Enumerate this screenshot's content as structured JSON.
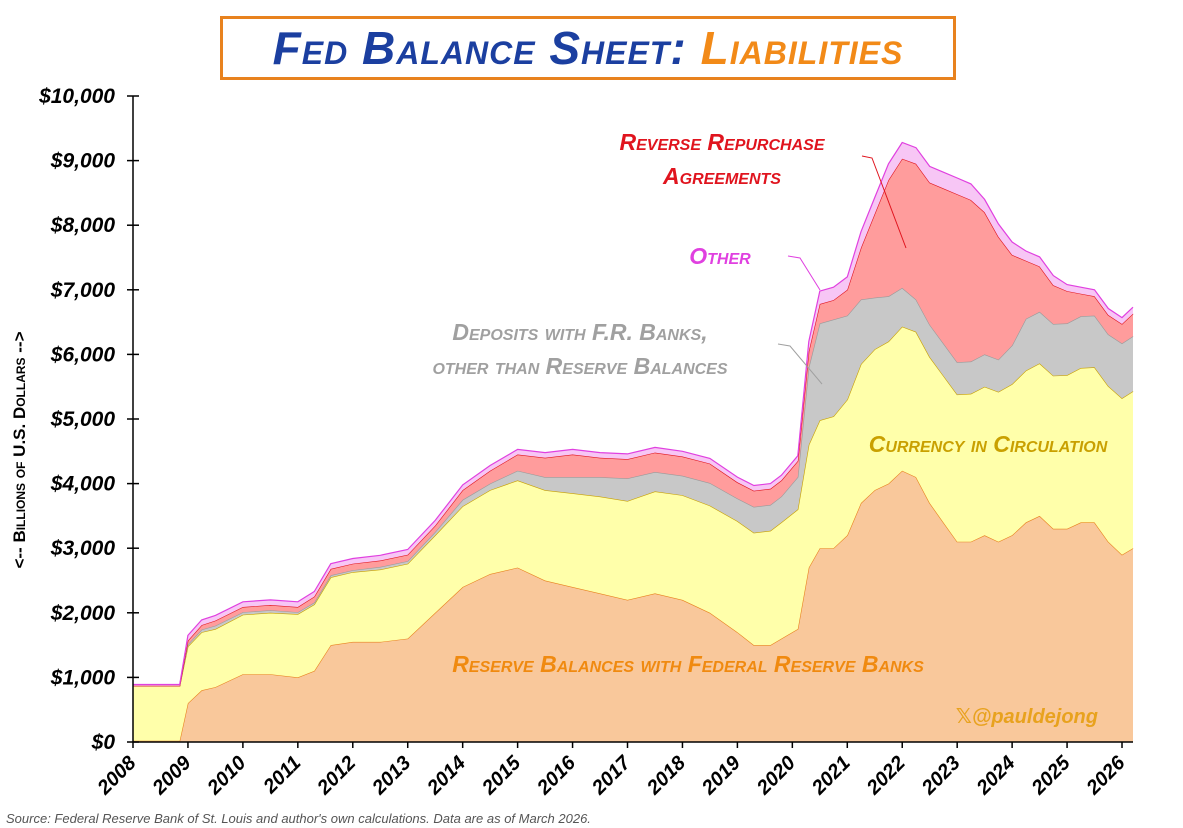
{
  "title": {
    "main": "Fed Balance Sheet:",
    "accent": "Liabilities"
  },
  "source": "Source: Federal Reserve Bank of St. Louis and author's own calculations. Data are as of March 2026.",
  "watermark": "𝕏@pauldejong",
  "chart_data": {
    "type": "area",
    "stacked": true,
    "title": "Fed Balance Sheet: Liabilities",
    "ylabel": "<-- Billions of U.S. Dollars -->",
    "xlabel": "",
    "xlim": [
      2008,
      2026.2
    ],
    "ylim": [
      0,
      10000
    ],
    "y_ticks": [
      0,
      1000,
      2000,
      3000,
      4000,
      5000,
      6000,
      7000,
      8000,
      9000,
      10000
    ],
    "y_tick_labels": [
      "$0",
      "$1,000",
      "$2,000",
      "$3,000",
      "$4,000",
      "$5,000",
      "$6,000",
      "$7,000",
      "$8,000",
      "$9,000",
      "$10,000"
    ],
    "x_tick_labels": [
      "2008",
      "2009",
      "2010",
      "2011",
      "2012",
      "2013",
      "2014",
      "2015",
      "2016",
      "2017",
      "2018",
      "2019",
      "2020",
      "2021",
      "2022",
      "2023",
      "2024",
      "2025",
      "2026"
    ],
    "x": [
      2008.0,
      2008.75,
      2008.85,
      2009.0,
      2009.25,
      2009.5,
      2010.0,
      2010.5,
      2011.0,
      2011.3,
      2011.6,
      2012.0,
      2012.5,
      2013.0,
      2013.5,
      2014.0,
      2014.5,
      2015.0,
      2015.5,
      2016.0,
      2016.5,
      2017.0,
      2017.5,
      2018.0,
      2018.5,
      2019.0,
      2019.3,
      2019.6,
      2019.8,
      2020.1,
      2020.3,
      2020.5,
      2020.75,
      2021.0,
      2021.25,
      2021.5,
      2021.75,
      2022.0,
      2022.25,
      2022.5,
      2022.75,
      2023.0,
      2023.25,
      2023.5,
      2023.75,
      2024.0,
      2024.25,
      2024.5,
      2024.75,
      2025.0,
      2025.25,
      2025.5,
      2025.75,
      2026.0,
      2026.2
    ],
    "series": [
      {
        "name": "Reserve Balances with Federal Reserve Banks",
        "color": "#f9c89b",
        "values": [
          20,
          20,
          20,
          600,
          800,
          850,
          1050,
          1050,
          1000,
          1100,
          1500,
          1550,
          1550,
          1600,
          2000,
          2400,
          2600,
          2700,
          2500,
          2400,
          2300,
          2200,
          2300,
          2200,
          2000,
          1700,
          1500,
          1500,
          1600,
          1750,
          2700,
          3000,
          3000,
          3200,
          3700,
          3900,
          4000,
          4200,
          4100,
          3700,
          3400,
          3100,
          3100,
          3200,
          3100,
          3200,
          3400,
          3500,
          3300,
          3300,
          3400,
          3400,
          3100,
          2900,
          3000
        ]
      },
      {
        "name": "Currency in Circulation",
        "color": "#ffffaa",
        "values": [
          850,
          850,
          850,
          880,
          900,
          900,
          920,
          950,
          980,
          1030,
          1050,
          1080,
          1120,
          1160,
          1200,
          1250,
          1300,
          1350,
          1400,
          1450,
          1500,
          1530,
          1580,
          1620,
          1660,
          1720,
          1740,
          1770,
          1800,
          1850,
          1900,
          1980,
          2040,
          2100,
          2150,
          2180,
          2200,
          2230,
          2250,
          2260,
          2270,
          2280,
          2290,
          2300,
          2320,
          2340,
          2350,
          2360,
          2370,
          2380,
          2390,
          2400,
          2410,
          2420,
          2430
        ]
      },
      {
        "name": "Deposits with F.R. Banks, other than Reserve Balances",
        "color": "#c8c8c8",
        "values": [
          0,
          0,
          0,
          30,
          40,
          50,
          40,
          40,
          30,
          30,
          30,
          30,
          40,
          40,
          50,
          100,
          100,
          150,
          200,
          250,
          300,
          350,
          300,
          300,
          350,
          350,
          400,
          400,
          400,
          500,
          1200,
          1500,
          1500,
          1300,
          1000,
          800,
          700,
          600,
          500,
          500,
          500,
          500,
          500,
          500,
          500,
          600,
          800,
          800,
          800,
          800,
          800,
          800,
          800,
          850,
          850
        ]
      },
      {
        "name": "Reverse Repurchase Agreements",
        "color": "#ff9c9c",
        "values": [
          0,
          0,
          0,
          60,
          70,
          80,
          80,
          80,
          80,
          90,
          100,
          100,
          100,
          100,
          100,
          150,
          200,
          250,
          300,
          350,
          300,
          300,
          300,
          300,
          300,
          250,
          250,
          250,
          250,
          250,
          250,
          300,
          300,
          400,
          800,
          1300,
          1800,
          2000,
          2100,
          2200,
          2400,
          2600,
          2500,
          2200,
          1900,
          1400,
          900,
          700,
          600,
          500,
          350,
          300,
          300,
          300,
          350
        ]
      },
      {
        "name": "Other",
        "color": "#f7c6f5",
        "values": [
          20,
          20,
          20,
          80,
          80,
          80,
          80,
          80,
          80,
          80,
          80,
          80,
          80,
          80,
          80,
          80,
          80,
          80,
          80,
          80,
          80,
          80,
          80,
          80,
          80,
          80,
          80,
          80,
          80,
          80,
          150,
          200,
          200,
          200,
          250,
          250,
          250,
          250,
          250,
          250,
          250,
          250,
          250,
          200,
          200,
          200,
          150,
          150,
          150,
          100,
          100,
          100,
          100,
          100,
          100
        ]
      }
    ],
    "annotations": [
      {
        "text": "Reverse Repurchase",
        "color": "#e0141e",
        "series": "Reverse Repurchase Agreements"
      },
      {
        "text": "Agreements",
        "color": "#e0141e",
        "series": "Reverse Repurchase Agreements"
      },
      {
        "text": "Other",
        "color": "#e040e0",
        "series": "Other"
      },
      {
        "text": "Deposits with F.R. Banks,",
        "color": "#a0a0a0",
        "series": "Deposits with F.R. Banks, other than Reserve Balances"
      },
      {
        "text": "other than Reserve Balances",
        "color": "#a0a0a0",
        "series": "Deposits with F.R. Banks, other than Reserve Balances"
      },
      {
        "text": "Currency in Circulation",
        "color": "#c9a000",
        "series": "Currency in Circulation"
      },
      {
        "text": "Reserve Balances with Federal Reserve Banks",
        "color": "#f08a10",
        "series": "Reserve Balances with Federal Reserve Banks"
      }
    ]
  }
}
